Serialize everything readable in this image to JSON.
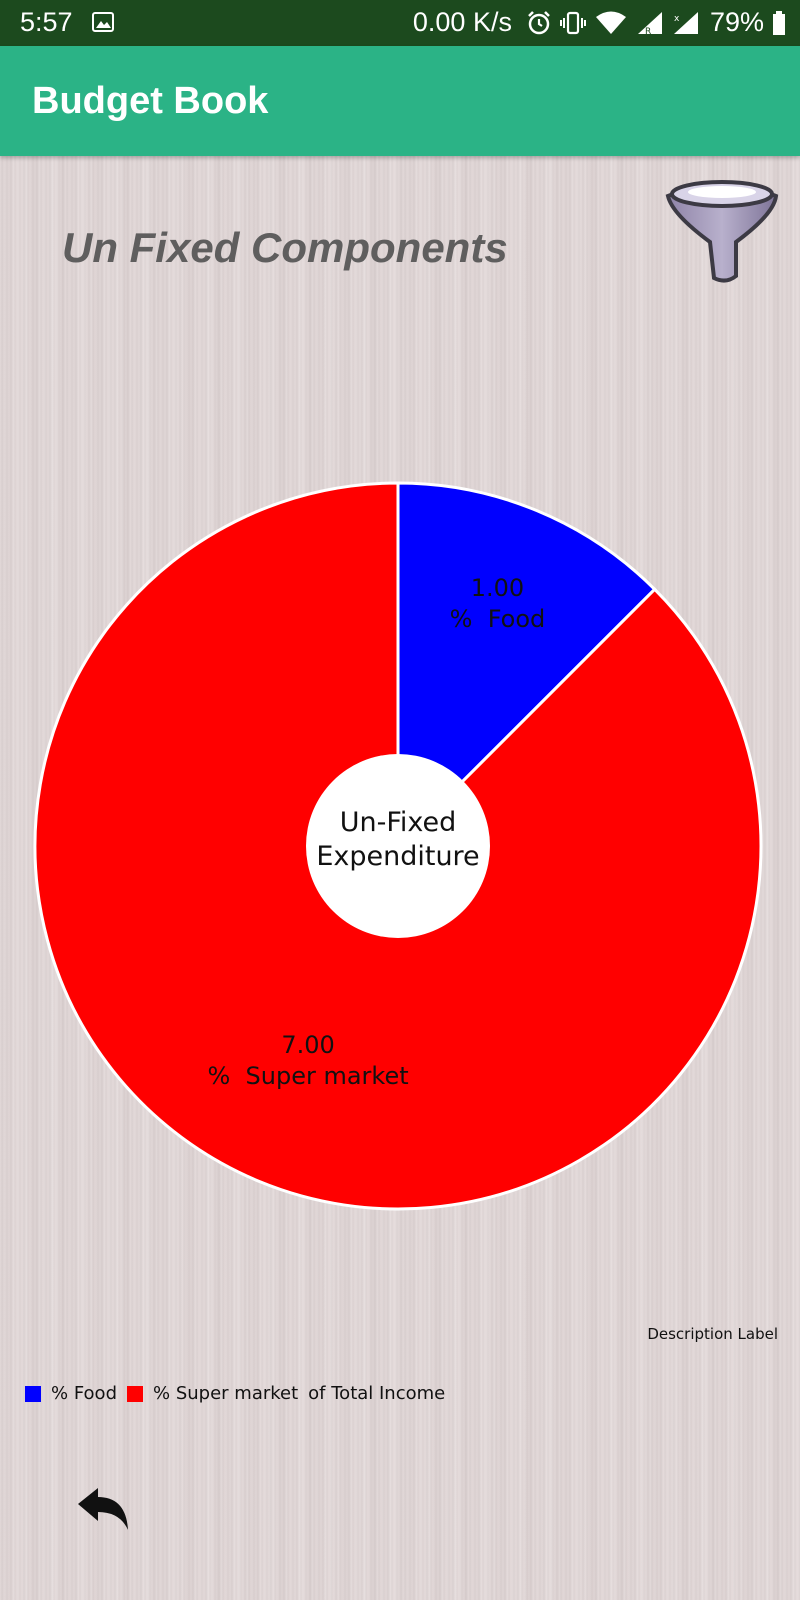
{
  "status_bar": {
    "time": "5:57",
    "speed": "0.00 K/s",
    "battery": "79%",
    "icons": [
      "image-icon",
      "alarm-icon",
      "vibrate-icon",
      "wifi-icon",
      "signal-icon",
      "signal-icon",
      "battery-icon"
    ]
  },
  "app_bar": {
    "title": "Budget Book",
    "color": "#2bb386"
  },
  "main": {
    "heading": "Un Fixed Components",
    "filter_icon": "funnel-icon",
    "description_label": "Description Label",
    "back_icon": "back-arrow-icon"
  },
  "chart_data": {
    "type": "pie",
    "center_text": [
      "Un-Fixed",
      "Expenditure"
    ],
    "slices": [
      {
        "name": "%  Food",
        "value": 1.0,
        "label": "1.00",
        "color": "#0000ff"
      },
      {
        "name": "%  Super market",
        "value": 7.0,
        "label": "7.00",
        "color": "#ff0000"
      }
    ],
    "legend": {
      "placement": "bottom-left",
      "items": [
        "%  Food",
        "%  Super market"
      ],
      "suffix": "of Total Income"
    }
  }
}
